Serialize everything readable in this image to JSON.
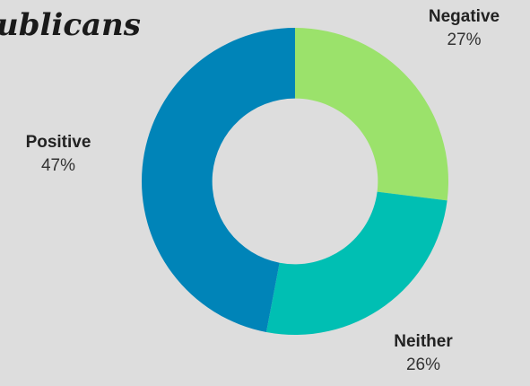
{
  "chart_data": {
    "type": "pie",
    "title": "ublicans",
    "hole": 0.54,
    "slices": [
      {
        "label": "Negative",
        "value": 27,
        "value_label": "27%",
        "color": "#9be26b"
      },
      {
        "label": "Neither",
        "value": 26,
        "value_label": "26%",
        "color": "#00bfb3"
      },
      {
        "label": "Positive",
        "value": 47,
        "value_label": "47%",
        "color": "#0084b8"
      }
    ]
  }
}
